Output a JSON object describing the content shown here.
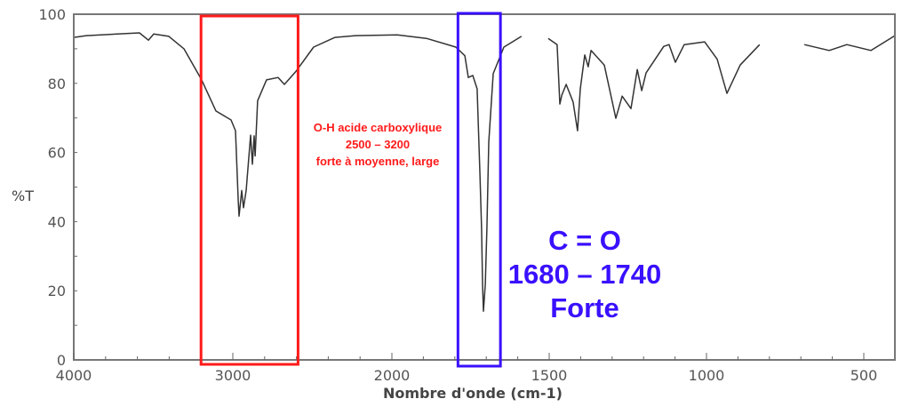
{
  "chart_data": {
    "type": "line",
    "title": "",
    "xlabel": "Nombre d'onde (cm-1)",
    "ylabel": "%T",
    "xlim": [
      4000,
      400
    ],
    "x_scale_break": 2000,
    "ylim": [
      0,
      100
    ],
    "x_ticks": [
      4000,
      3000,
      2000,
      1500,
      1000,
      500
    ],
    "y_ticks": [
      0,
      20,
      40,
      60,
      80,
      100
    ],
    "grid": false,
    "series": [
      {
        "name": "spectrum",
        "segments": [
          [
            [
              4000,
              93.3
            ],
            [
              3922,
              93.8
            ],
            [
              3587,
              94.6
            ],
            [
              3531,
              92.5
            ],
            [
              3497,
              94.3
            ],
            [
              3402,
              93.6
            ],
            [
              3307,
              90
            ],
            [
              3196,
              81
            ],
            [
              3106,
              72
            ],
            [
              3011,
              69.4
            ],
            [
              2983,
              66.3
            ],
            [
              2966,
              46
            ],
            [
              2961,
              41.6
            ],
            [
              2944,
              49
            ],
            [
              2933,
              44
            ],
            [
              2916,
              49
            ],
            [
              2888,
              65
            ],
            [
              2877,
              56.6
            ],
            [
              2866,
              64.8
            ],
            [
              2860,
              59
            ],
            [
              2844,
              75
            ],
            [
              2788,
              81
            ],
            [
              2715,
              81.7
            ],
            [
              2676,
              79.7
            ],
            [
              2603,
              83.5
            ],
            [
              2492,
              90.5
            ],
            [
              2358,
              93.3
            ],
            [
              2229,
              93.8
            ],
            [
              1983,
              94
            ],
            [
              1890,
              93
            ],
            [
              1797,
              90.5
            ],
            [
              1768,
              88
            ],
            [
              1757,
              81.7
            ],
            [
              1743,
              82.3
            ],
            [
              1729,
              78.4
            ],
            [
              1720,
              53.5
            ],
            [
              1715,
              38
            ],
            [
              1712,
              21.9
            ],
            [
              1709,
              14.1
            ],
            [
              1703,
              21.9
            ],
            [
              1698,
              38
            ],
            [
              1692,
              63
            ],
            [
              1678,
              82.8
            ],
            [
              1644,
              90.5
            ],
            [
              1588,
              93.6
            ]
          ],
          [
            [
              1503,
              93
            ],
            [
              1475,
              91.2
            ],
            [
              1466,
              74
            ],
            [
              1460,
              76.6
            ],
            [
              1446,
              79.7
            ],
            [
              1424,
              74.6
            ],
            [
              1410,
              66.3
            ],
            [
              1401,
              78.4
            ],
            [
              1387,
              88.2
            ],
            [
              1376,
              84.8
            ],
            [
              1367,
              89.5
            ],
            [
              1325,
              85.3
            ],
            [
              1288,
              69.9
            ],
            [
              1268,
              76.3
            ],
            [
              1240,
              72.7
            ],
            [
              1220,
              84
            ],
            [
              1206,
              77.9
            ],
            [
              1192,
              83
            ],
            [
              1136,
              90.7
            ],
            [
              1119,
              91.2
            ],
            [
              1099,
              86.1
            ],
            [
              1071,
              91.2
            ],
            [
              1006,
              92
            ],
            [
              966,
              87
            ],
            [
              935,
              77.1
            ],
            [
              893,
              85.3
            ],
            [
              831,
              91.2
            ]
          ],
          [
            [
              689,
              91.2
            ],
            [
              610,
              89.5
            ],
            [
              554,
              91.2
            ],
            [
              477,
              89.5
            ],
            [
              401,
              93.8
            ]
          ]
        ]
      }
    ],
    "annotations": [
      {
        "name": "oh-band",
        "color": "#ff1a1a",
        "range_cm1": [
          3200,
          2590
        ],
        "lines": [
          "O-H acide carboxylique",
          "2500 – 3200",
          "forte à moyenne, large"
        ]
      },
      {
        "name": "co-band",
        "color": "#3a10ff",
        "range_cm1": [
          1790,
          1655
        ],
        "lines": [
          "C = O",
          "1680 – 1740",
          "Forte"
        ]
      }
    ],
    "colors": {
      "trace": "#333333",
      "axis": "#666666"
    }
  }
}
